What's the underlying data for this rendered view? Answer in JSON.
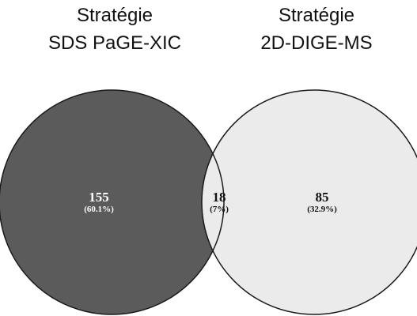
{
  "sets": {
    "left": {
      "title_line1": "Stratégie",
      "title_line2": "SDS PaGE-XIC",
      "color": "#5b5b5b"
    },
    "right": {
      "title_line1": "Stratégie",
      "title_line2": "2D-DIGE-MS",
      "color": "#a9a9a9"
    }
  },
  "regions": {
    "left_only": {
      "count": "155",
      "percent": "(60.1%)",
      "text_color": "#ffffff"
    },
    "intersection": {
      "count": "18",
      "percent": "(7%)",
      "text_color": "#111111",
      "color": "#ebebeb"
    },
    "right_only": {
      "count": "85",
      "percent": "(32.9%)",
      "text_color": "#111111"
    }
  },
  "outline_color": "#1a1a1a"
}
